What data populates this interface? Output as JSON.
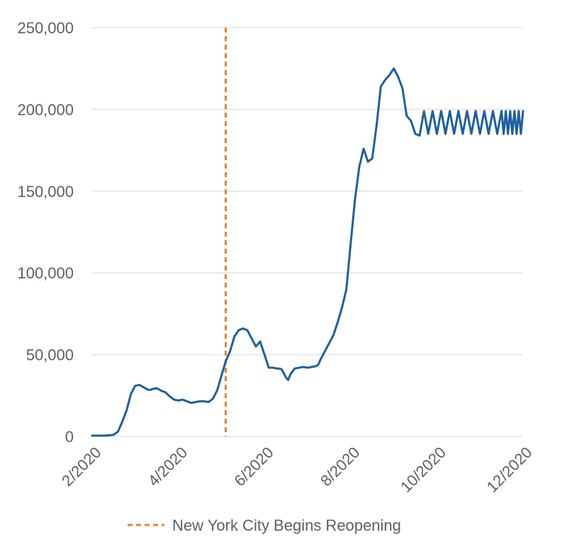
{
  "chart_data": {
    "type": "line",
    "title": "",
    "xlabel": "",
    "ylabel": "",
    "ylim": [
      0,
      250000
    ],
    "yticks": [
      0,
      50000,
      100000,
      150000,
      200000,
      250000
    ],
    "ytick_labels": [
      "0",
      "50,000",
      "100,000",
      "150,000",
      "200,000",
      "250,000"
    ],
    "x_axis": "months since 2/2020",
    "xticks": [
      0,
      2,
      4,
      6,
      8,
      10
    ],
    "xtick_labels": [
      "2/2020",
      "4/2020",
      "6/2020",
      "8/2020",
      "10/2020",
      "12/2020"
    ],
    "grid": true,
    "legend_placement": "bottom",
    "series": [
      {
        "color": "#1f5f9f",
        "x": [
          0,
          0.3,
          0.5,
          0.6,
          0.7,
          0.8,
          0.9,
          1.0,
          1.1,
          1.2,
          1.3,
          1.35,
          1.4,
          1.5,
          1.6,
          1.7,
          1.8,
          1.9,
          2.0,
          2.1,
          2.2,
          2.3,
          2.4,
          2.5,
          2.6,
          2.7,
          2.8,
          2.9,
          3.0,
          3.1,
          3.2,
          3.3,
          3.4,
          3.5,
          3.6,
          3.7,
          3.8,
          3.9,
          4.0,
          4.1,
          4.2,
          4.3,
          4.35,
          4.4,
          4.5,
          4.55,
          4.6,
          4.7,
          4.8,
          4.9,
          5.0,
          5.1,
          5.2,
          5.25,
          5.3,
          5.4,
          5.5,
          5.6,
          5.7,
          5.8,
          5.9,
          6.0,
          6.1,
          6.2,
          6.3,
          6.4,
          6.5,
          6.6,
          6.7,
          6.8,
          6.9,
          7.0,
          7.1,
          7.2,
          7.3,
          7.4,
          7.5,
          7.6,
          7.7,
          7.8,
          7.9,
          8.0,
          8.1,
          8.2,
          8.3,
          8.4,
          8.5,
          8.6,
          8.7,
          8.8,
          8.9,
          9.0,
          9.1,
          9.2,
          9.3,
          9.4,
          9.5,
          9.55,
          9.6,
          9.65,
          9.7,
          9.75,
          9.8,
          9.85,
          9.9,
          9.95,
          10.0
        ],
        "values": [
          500,
          500,
          1000,
          3000,
          9000,
          16000,
          26000,
          31000,
          31500,
          30000,
          28500,
          28500,
          29000,
          29500,
          28000,
          27000,
          24500,
          22500,
          22000,
          22500,
          21500,
          20500,
          21000,
          21500,
          21500,
          21000,
          23000,
          28000,
          37000,
          46000,
          52000,
          61000,
          65000,
          66000,
          65000,
          60000,
          55000,
          58000,
          50000,
          42000,
          42000,
          41500,
          41500,
          41000,
          36000,
          34500,
          38000,
          41500,
          42000,
          42500,
          42000,
          42500,
          43000,
          44000,
          47000,
          52000,
          57000,
          62000,
          70000,
          79000,
          90000,
          118000,
          145000,
          165000,
          176000,
          168000,
          170000,
          190000,
          214000,
          218000,
          221000,
          225000,
          220000,
          213000,
          196000,
          193000,
          185000,
          184000,
          199000,
          185000,
          199000,
          185000,
          199000,
          185000,
          199000,
          185000,
          199000,
          185000,
          199000,
          185000,
          199000,
          185000,
          199000,
          185000,
          199000,
          185000,
          199000,
          185000,
          199000,
          185000,
          199000,
          185000,
          199000,
          185000,
          199000,
          185000,
          199000
        ]
      }
    ],
    "annotations": [
      {
        "type": "vline",
        "x": 3.1,
        "color": "#e8822a",
        "style": "dashed",
        "label": "New York City Begins Reopening"
      }
    ]
  },
  "legend": {
    "label": "New York City Begins Reopening",
    "color": "#e8822a"
  }
}
